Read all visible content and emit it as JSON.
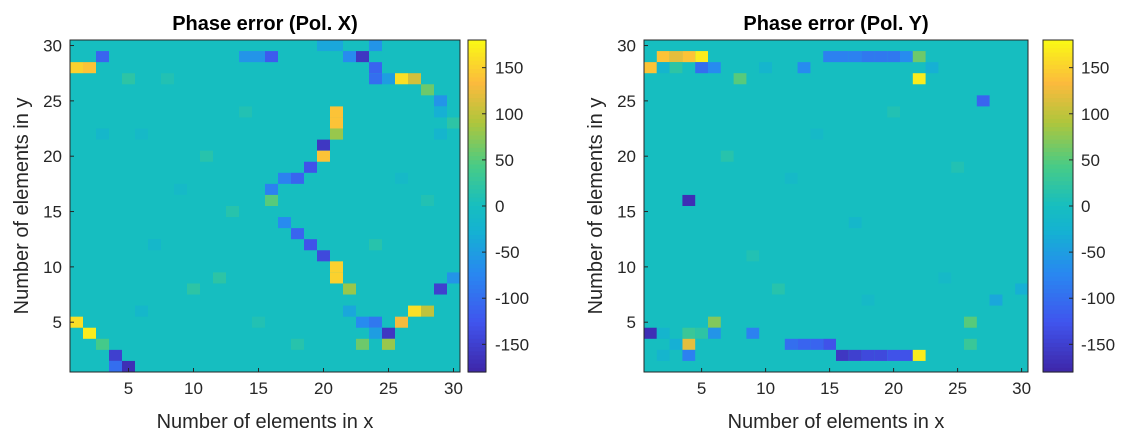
{
  "chart_data": [
    {
      "type": "heatmap",
      "title": "Phase error (Pol. X)",
      "xlabel": "Number of elements in x",
      "ylabel": "Number of elements in y",
      "xlim": [
        0.5,
        30.5
      ],
      "ylim": [
        0.5,
        30.5
      ],
      "xticks": [
        "5",
        "10",
        "15",
        "20",
        "25",
        "30"
      ],
      "yticks": [
        "5",
        "10",
        "15",
        "20",
        "25",
        "30"
      ],
      "colorbar": {
        "ticks": [
          "150",
          "100",
          "50",
          "0",
          "-50",
          "-100",
          "-150"
        ],
        "range": [
          -180,
          180
        ],
        "colormap": "parula"
      },
      "background_value": 0,
      "cells": [
        [
          5,
          31,
          -170
        ],
        [
          3,
          29,
          -110
        ],
        [
          2,
          28,
          140
        ],
        [
          1,
          28,
          150
        ],
        [
          14,
          29,
          -60
        ],
        [
          15,
          29,
          -60
        ],
        [
          16,
          29,
          -120
        ],
        [
          20,
          30,
          -40
        ],
        [
          21,
          30,
          -40
        ],
        [
          22,
          29,
          -70
        ],
        [
          23,
          29,
          -160
        ],
        [
          24,
          30,
          -60
        ],
        [
          25,
          31,
          -170
        ],
        [
          24,
          28,
          -110
        ],
        [
          24,
          27,
          -100
        ],
        [
          25,
          27,
          -50
        ],
        [
          26,
          27,
          160
        ],
        [
          27,
          27,
          110
        ],
        [
          28,
          26,
          60
        ],
        [
          29,
          25,
          -60
        ],
        [
          29,
          24,
          -30
        ],
        [
          30,
          23,
          20
        ],
        [
          29,
          22,
          -20
        ],
        [
          31,
          21,
          40
        ],
        [
          21,
          24,
          140
        ],
        [
          21,
          23,
          140
        ],
        [
          21,
          22,
          80
        ],
        [
          20,
          21,
          -160
        ],
        [
          20,
          20,
          140
        ],
        [
          19,
          19,
          -130
        ],
        [
          18,
          18,
          -110
        ],
        [
          17,
          18,
          -80
        ],
        [
          16,
          17,
          -80
        ],
        [
          16,
          16,
          50
        ],
        [
          17,
          14,
          -70
        ],
        [
          18,
          13,
          -110
        ],
        [
          19,
          12,
          -130
        ],
        [
          20,
          11,
          -140
        ],
        [
          21,
          10,
          150
        ],
        [
          21,
          9,
          150
        ],
        [
          22,
          8,
          80
        ],
        [
          22,
          6,
          -40
        ],
        [
          23,
          5,
          -70
        ],
        [
          24,
          5,
          -90
        ],
        [
          25,
          4,
          -160
        ],
        [
          24,
          4,
          -50
        ],
        [
          26,
          5,
          130
        ],
        [
          27,
          6,
          160
        ],
        [
          28,
          6,
          100
        ],
        [
          25,
          3,
          80
        ],
        [
          23,
          3,
          60
        ],
        [
          29,
          8,
          -150
        ],
        [
          30,
          9,
          -60
        ],
        [
          31,
          11,
          40
        ],
        [
          31,
          12,
          50
        ],
        [
          1,
          5,
          160
        ],
        [
          2,
          4,
          170
        ],
        [
          3,
          3,
          40
        ],
        [
          4,
          2,
          -150
        ],
        [
          5,
          1,
          -170
        ],
        [
          4,
          1,
          -100
        ],
        [
          5,
          27,
          20
        ],
        [
          8,
          27,
          10
        ],
        [
          6,
          22,
          -10
        ],
        [
          11,
          20,
          15
        ],
        [
          9,
          17,
          -10
        ],
        [
          13,
          15,
          15
        ],
        [
          7,
          12,
          -15
        ],
        [
          12,
          9,
          20
        ],
        [
          10,
          8,
          20
        ],
        [
          6,
          6,
          -15
        ],
        [
          15,
          5,
          10
        ],
        [
          18,
          3,
          15
        ],
        [
          3,
          22,
          -15
        ],
        [
          14,
          24,
          10
        ],
        [
          26,
          18,
          -10
        ],
        [
          24,
          12,
          15
        ],
        [
          28,
          16,
          10
        ]
      ]
    },
    {
      "type": "heatmap",
      "title": "Phase error (Pol. Y)",
      "xlabel": "Number of elements in x",
      "ylabel": "Number of elements in y",
      "xlim": [
        0.5,
        30.5
      ],
      "ylim": [
        0.5,
        30.5
      ],
      "xticks": [
        "5",
        "10",
        "15",
        "20",
        "25",
        "30"
      ],
      "yticks": [
        "5",
        "10",
        "15",
        "20",
        "25",
        "30"
      ],
      "colorbar": {
        "ticks": [
          "150",
          "100",
          "50",
          "0",
          "-50",
          "-100",
          "-150"
        ],
        "range": [
          -180,
          180
        ],
        "colormap": "parula"
      },
      "background_value": 0,
      "cells": [
        [
          2,
          29,
          140
        ],
        [
          3,
          29,
          120
        ],
        [
          4,
          29,
          140
        ],
        [
          5,
          29,
          170
        ],
        [
          1,
          28,
          140
        ],
        [
          2,
          28,
          -20
        ],
        [
          3,
          28,
          20
        ],
        [
          5,
          28,
          -100
        ],
        [
          6,
          28,
          -70
        ],
        [
          8,
          27,
          50
        ],
        [
          10,
          28,
          -20
        ],
        [
          13,
          28,
          -70
        ],
        [
          15,
          29,
          -80
        ],
        [
          16,
          29,
          -80
        ],
        [
          17,
          29,
          -80
        ],
        [
          18,
          29,
          -90
        ],
        [
          19,
          29,
          -90
        ],
        [
          20,
          29,
          -90
        ],
        [
          21,
          29,
          -70
        ],
        [
          22,
          29,
          60
        ],
        [
          23,
          28,
          -30
        ],
        [
          22,
          27,
          170
        ],
        [
          27,
          25,
          -110
        ],
        [
          4,
          16,
          -170
        ],
        [
          1,
          4,
          -170
        ],
        [
          2,
          4,
          -20
        ],
        [
          4,
          4,
          30
        ],
        [
          4,
          3,
          120
        ],
        [
          3,
          3,
          -30
        ],
        [
          5,
          4,
          20
        ],
        [
          6,
          5,
          70
        ],
        [
          6,
          4,
          -60
        ],
        [
          9,
          4,
          -80
        ],
        [
          4,
          2,
          -80
        ],
        [
          2,
          2,
          -20
        ],
        [
          12,
          3,
          -100
        ],
        [
          13,
          3,
          -110
        ],
        [
          14,
          3,
          -110
        ],
        [
          15,
          3,
          -130
        ],
        [
          16,
          2,
          -160
        ],
        [
          17,
          2,
          -150
        ],
        [
          18,
          2,
          -140
        ],
        [
          19,
          2,
          -140
        ],
        [
          20,
          2,
          -130
        ],
        [
          21,
          2,
          -130
        ],
        [
          22,
          2,
          170
        ],
        [
          26,
          5,
          50
        ],
        [
          28,
          7,
          -40
        ],
        [
          26,
          3,
          30
        ],
        [
          30,
          8,
          -30
        ],
        [
          7,
          20,
          15
        ],
        [
          12,
          18,
          -10
        ],
        [
          9,
          11,
          10
        ],
        [
          17,
          14,
          -15
        ],
        [
          20,
          24,
          10
        ],
        [
          24,
          9,
          -10
        ],
        [
          11,
          8,
          15
        ],
        [
          14,
          22,
          -10
        ],
        [
          25,
          19,
          10
        ],
        [
          18,
          7,
          -10
        ]
      ]
    }
  ]
}
